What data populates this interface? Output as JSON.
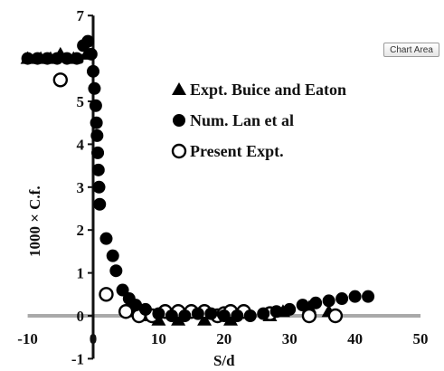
{
  "chart_area_label": "Chart Area",
  "chart_data": {
    "type": "scatter",
    "title": "",
    "xlabel": "S/d",
    "ylabel": "1000 × C.f.",
    "xlim": [
      -10,
      50
    ],
    "ylim": [
      -1,
      7
    ],
    "xticks": [
      -10,
      0,
      10,
      20,
      30,
      40,
      50
    ],
    "yticks": [
      -1,
      0,
      1,
      2,
      3,
      4,
      5,
      6,
      7
    ],
    "grid": false,
    "legend_position": "upper-middle",
    "series": [
      {
        "name": "Expt. Buice and Eaton",
        "marker": "triangle",
        "fill": "#000000",
        "points": [
          [
            -10,
            6.0
          ],
          [
            -8,
            6.0
          ],
          [
            -6.5,
            6.0
          ],
          [
            -5,
            6.1
          ],
          [
            -3,
            6.0
          ],
          [
            -1,
            6.1
          ],
          [
            6,
            0.1
          ],
          [
            8,
            0.0
          ],
          [
            10,
            -0.1
          ],
          [
            13,
            -0.1
          ],
          [
            17,
            -0.1
          ],
          [
            21,
            -0.1
          ],
          [
            27,
            0.0
          ],
          [
            29,
            0.1
          ],
          [
            33,
            0.2
          ],
          [
            36,
            0.1
          ]
        ]
      },
      {
        "name": "Num. Lan et al",
        "marker": "circle",
        "fill": "#000000",
        "points": [
          [
            -10,
            6.0
          ],
          [
            -8.5,
            6.0
          ],
          [
            -7,
            6.0
          ],
          [
            -5.5,
            6.0
          ],
          [
            -4,
            6.0
          ],
          [
            -2.5,
            6.0
          ],
          [
            -1.5,
            6.3
          ],
          [
            -0.8,
            6.4
          ],
          [
            -0.3,
            6.1
          ],
          [
            0,
            5.7
          ],
          [
            0.2,
            5.3
          ],
          [
            0.4,
            4.9
          ],
          [
            0.5,
            4.5
          ],
          [
            0.6,
            4.2
          ],
          [
            0.7,
            3.8
          ],
          [
            0.8,
            3.4
          ],
          [
            0.9,
            3.0
          ],
          [
            1.0,
            2.6
          ],
          [
            2,
            1.8
          ],
          [
            3,
            1.4
          ],
          [
            3.5,
            1.05
          ],
          [
            4.5,
            0.6
          ],
          [
            5.5,
            0.4
          ],
          [
            6.5,
            0.25
          ],
          [
            8,
            0.15
          ],
          [
            10,
            0.05
          ],
          [
            12,
            0.0
          ],
          [
            14,
            0.0
          ],
          [
            16,
            0.05
          ],
          [
            18,
            0.05
          ],
          [
            20,
            0.0
          ],
          [
            22,
            0.0
          ],
          [
            24,
            0.0
          ],
          [
            26,
            0.05
          ],
          [
            28,
            0.1
          ],
          [
            30,
            0.15
          ],
          [
            32,
            0.25
          ],
          [
            34,
            0.3
          ],
          [
            36,
            0.35
          ],
          [
            38,
            0.4
          ],
          [
            40,
            0.45
          ],
          [
            42,
            0.45
          ]
        ]
      },
      {
        "name": "Present Expt.",
        "marker": "open-circle",
        "fill": "#ffffff",
        "points": [
          [
            -5,
            5.5
          ],
          [
            2,
            0.5
          ],
          [
            5,
            0.1
          ],
          [
            7,
            0.0
          ],
          [
            9,
            0.0
          ],
          [
            11,
            0.1
          ],
          [
            13,
            0.1
          ],
          [
            15,
            0.1
          ],
          [
            17,
            0.1
          ],
          [
            19,
            0.0
          ],
          [
            20,
            0.05
          ],
          [
            21,
            0.1
          ],
          [
            23,
            0.1
          ],
          [
            27,
            0.05
          ],
          [
            33,
            0.0
          ],
          [
            37,
            0.0
          ]
        ]
      }
    ]
  }
}
